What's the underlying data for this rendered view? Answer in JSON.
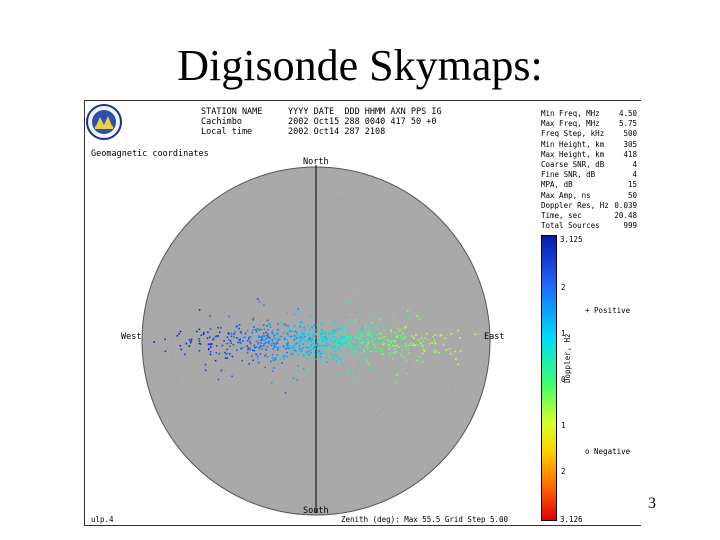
{
  "slide": {
    "title": "Digisonde Skymaps:",
    "page_number": "3"
  },
  "header": {
    "columns": [
      "STATION NAME",
      "YYYY DATE",
      "DDD HHMM",
      "AXN PPS IG"
    ],
    "rows": [
      [
        "Cachimbo",
        "2002 Oct15",
        "288 0040",
        "417 50 +0"
      ],
      [
        "Local time",
        "2002 Oct14",
        "287 2108",
        ""
      ]
    ]
  },
  "coordinate_label": "Geomagnetic coordinates",
  "directions": {
    "north": "North",
    "south": "South",
    "east": "East",
    "west": "West"
  },
  "stats": [
    {
      "label": "Min Freq, MHz",
      "value": "4.50"
    },
    {
      "label": "Max Freq, MHz",
      "value": "5.75"
    },
    {
      "label": "Freq Step, kHz",
      "value": "500"
    },
    {
      "label": "Min Height, km",
      "value": "305"
    },
    {
      "label": "Max Height, km",
      "value": "418"
    },
    {
      "label": "Coarse SNR, dB",
      "value": "4"
    },
    {
      "label": "Fine SNR, dB",
      "value": "4"
    },
    {
      "label": "MPA, dB",
      "value": "15"
    },
    {
      "label": "Max Amp, ns",
      "value": "50"
    },
    {
      "label": "Doppler Res, Hz",
      "value": "0.039"
    },
    {
      "label": "Time, sec",
      "value": "20.48"
    },
    {
      "label": "Total Sources",
      "value": "999"
    }
  ],
  "colorbar": {
    "title": "Doppler, Hz",
    "max_label": "3.125",
    "min_label": "3.126",
    "ticks": [
      "2",
      "1",
      "0",
      "1",
      "2"
    ],
    "legend_top": "+ Positive",
    "legend_bottom": "o Negative"
  },
  "footer": {
    "left": "ulp.4",
    "center": "Zenith (deg): Max 55.5 Grid Step 5.00"
  },
  "colors": {
    "disk": "#a9a9a9",
    "cbar_top": "#0a1aa8",
    "cbar_bottom": "#e00000"
  }
}
